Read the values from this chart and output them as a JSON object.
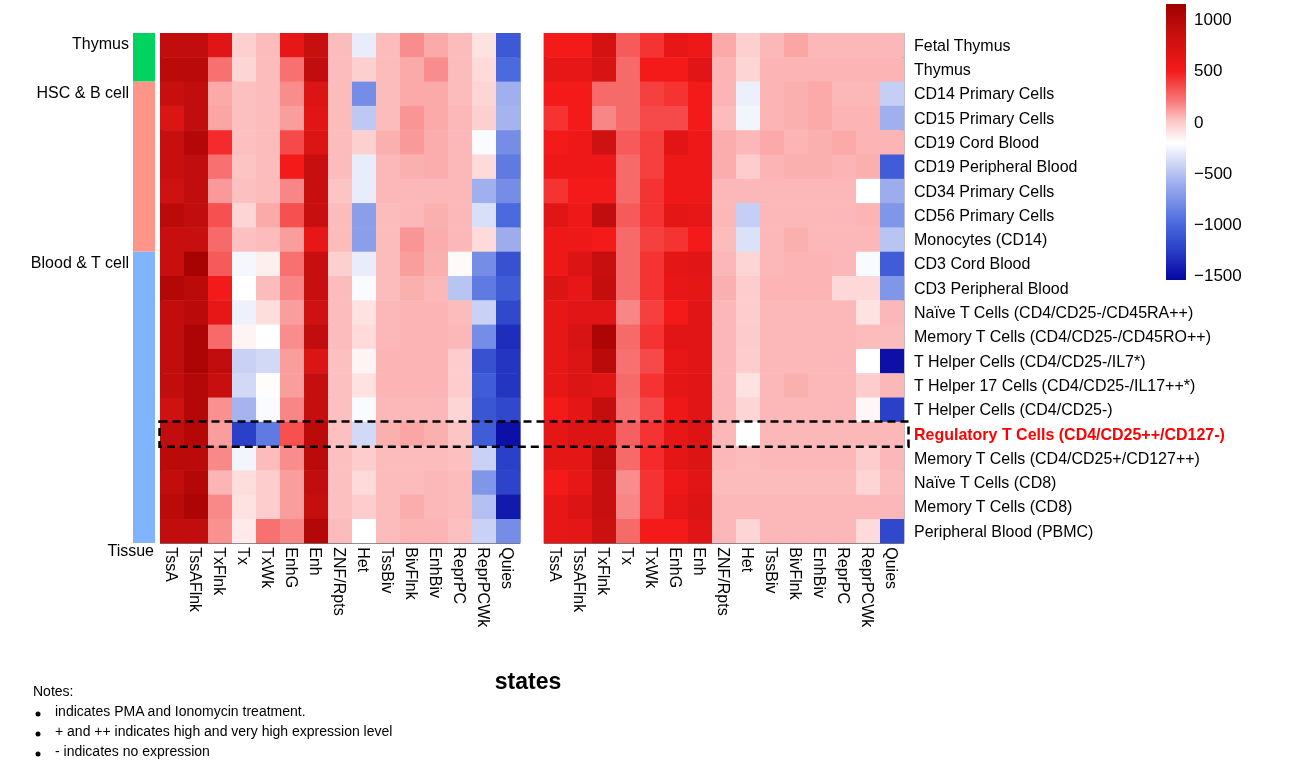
{
  "chart_data": {
    "type": "heatmap",
    "xlabel": "states",
    "categories": [
      "TssA",
      "TssAFlnk",
      "TxFlnk",
      "Tx",
      "TxWk",
      "EnhG",
      "Enh",
      "ZNF/Rpts",
      "Het",
      "TssBiv",
      "BivFlnk",
      "EnhBiv",
      "ReprPC",
      "ReprPCWk",
      "Quies",
      null,
      "TssA",
      "TssAFlnk",
      "TxFlnk",
      "Tx",
      "TxWk",
      "EnhG",
      "Enh",
      "ZNF/Rpts",
      "Het",
      "TssBiv",
      "BivFlnk",
      "EnhBiv",
      "ReprPC",
      "ReprPCWk",
      "Quies"
    ],
    "y_categories": [
      "Fetal Thymus",
      "Thymus",
      "CD14 Primary Cells",
      "CD15 Primary Cells",
      "CD19 Cord Blood",
      "CD19 Peripheral Blood",
      "CD34 Primary Cells",
      "CD56 Primary Cells",
      "Monocytes (CD14)",
      "CD3 Cord Blood",
      "CD3 Peripheral Blood",
      "Naïve T Cells (CD4/CD25-/CD45RA++)",
      "Memory T Cells (CD4/CD25-/CD45RO++)",
      "T Helper Cells (CD4/CD25-/IL7*)",
      "T Helper 17 Cells (CD4/CD25-/IL17++*)",
      "T Helper Cells (CD4/CD25-)",
      "Regulatory T Cells (CD4/CD25++/CD127-)",
      "Memory T Cells (CD4/CD25+/CD127++)",
      "Naïve T Cells (CD8)",
      "Memory T Cells (CD8)",
      "Peripheral Blood (PBMC)"
    ],
    "cells": [
      [
        900,
        900,
        650,
        -30,
        30,
        600,
        850,
        30,
        -300,
        30,
        150,
        80,
        30,
        -100,
        -1100,
        null,
        500,
        500,
        750,
        300,
        420,
        600,
        550,
        80,
        -30,
        40,
        90,
        40,
        40,
        40,
        40
      ],
      [
        950,
        950,
        230,
        -50,
        30,
        230,
        900,
        30,
        -30,
        30,
        80,
        150,
        30,
        -70,
        -1000,
        null,
        600,
        600,
        720,
        250,
        500,
        500,
        650,
        50,
        -50,
        50,
        50,
        50,
        50,
        50,
        50
      ],
      [
        850,
        900,
        80,
        20,
        30,
        150,
        700,
        30,
        -800,
        30,
        80,
        80,
        30,
        -50,
        -600,
        null,
        500,
        500,
        250,
        250,
        380,
        420,
        500,
        50,
        -290,
        50,
        60,
        80,
        40,
        40,
        -450
      ],
      [
        700,
        900,
        90,
        20,
        30,
        110,
        650,
        30,
        -480,
        30,
        130,
        80,
        40,
        -30,
        -580,
        null,
        420,
        500,
        170,
        250,
        350,
        350,
        500,
        30,
        -260,
        50,
        60,
        80,
        50,
        50,
        -600
      ],
      [
        850,
        1000,
        450,
        20,
        30,
        350,
        700,
        30,
        -30,
        60,
        120,
        70,
        40,
        -230,
        -800,
        null,
        500,
        550,
        800,
        300,
        380,
        650,
        550,
        70,
        40,
        80,
        50,
        60,
        80,
        50,
        50
      ],
      [
        850,
        900,
        230,
        10,
        30,
        500,
        850,
        30,
        -300,
        40,
        60,
        70,
        40,
        -70,
        -900,
        null,
        550,
        550,
        550,
        250,
        380,
        550,
        550,
        70,
        -20,
        50,
        60,
        60,
        50,
        60,
        -1080
      ],
      [
        800,
        900,
        120,
        20,
        30,
        170,
        850,
        10,
        -300,
        40,
        40,
        40,
        40,
        -600,
        -800,
        null,
        420,
        500,
        500,
        250,
        420,
        550,
        550,
        40,
        40,
        40,
        40,
        40,
        40,
        -210,
        -620
      ],
      [
        950,
        900,
        330,
        -50,
        80,
        330,
        850,
        30,
        -700,
        30,
        40,
        60,
        40,
        -370,
        -1000,
        null,
        650,
        550,
        900,
        300,
        420,
        620,
        600,
        40,
        -450,
        40,
        40,
        40,
        40,
        50,
        -750
      ],
      [
        850,
        850,
        250,
        20,
        30,
        110,
        600,
        30,
        -700,
        30,
        130,
        70,
        40,
        -70,
        -620,
        null,
        550,
        550,
        500,
        250,
        380,
        420,
        500,
        30,
        -360,
        40,
        60,
        40,
        40,
        40,
        -500
      ],
      [
        850,
        1100,
        300,
        -250,
        -150,
        230,
        850,
        -30,
        -300,
        30,
        110,
        60,
        -190,
        -800,
        -1150,
        null,
        550,
        680,
        850,
        250,
        420,
        620,
        650,
        40,
        -50,
        40,
        50,
        50,
        40,
        -230,
        -1080
      ],
      [
        1000,
        950,
        500,
        -210,
        30,
        170,
        850,
        30,
        -230,
        30,
        60,
        40,
        -500,
        -900,
        -1080,
        null,
        700,
        600,
        880,
        250,
        420,
        600,
        620,
        60,
        -20,
        50,
        50,
        50,
        -60,
        -60,
        -750
      ],
      [
        900,
        950,
        600,
        -280,
        -80,
        110,
        800,
        30,
        -100,
        40,
        50,
        50,
        30,
        -430,
        -1200,
        null,
        600,
        650,
        650,
        170,
        380,
        500,
        650,
        40,
        -20,
        40,
        40,
        40,
        40,
        -100,
        40
      ],
      [
        900,
        1050,
        250,
        -170,
        -210,
        150,
        900,
        30,
        -70,
        40,
        50,
        50,
        40,
        -800,
        -1350,
        null,
        600,
        720,
        1050,
        250,
        420,
        650,
        650,
        40,
        -10,
        40,
        40,
        40,
        40,
        30,
        30
      ],
      [
        900,
        1050,
        900,
        -430,
        -400,
        110,
        700,
        20,
        -170,
        50,
        50,
        50,
        -20,
        -1150,
        -1300,
        null,
        600,
        700,
        950,
        230,
        350,
        600,
        650,
        40,
        -20,
        40,
        40,
        40,
        40,
        -210,
        -1500
      ],
      [
        900,
        1000,
        850,
        -400,
        -200,
        110,
        870,
        20,
        -100,
        50,
        50,
        50,
        -20,
        -1080,
        -1300,
        null,
        600,
        700,
        650,
        250,
        420,
        620,
        650,
        40,
        -100,
        40,
        60,
        40,
        40,
        -20,
        40
      ],
      [
        800,
        1000,
        140,
        -580,
        -230,
        170,
        870,
        20,
        -230,
        40,
        40,
        40,
        -50,
        -1120,
        -1200,
        null,
        500,
        620,
        880,
        230,
        350,
        550,
        650,
        40,
        -50,
        40,
        40,
        40,
        40,
        -180,
        -1250
      ],
      [
        900,
        1000,
        110,
        -1250,
        -900,
        330,
        950,
        20,
        -400,
        60,
        90,
        60,
        10,
        -1080,
        -1500,
        null,
        620,
        680,
        680,
        280,
        420,
        600,
        680,
        40,
        -210,
        40,
        40,
        40,
        40,
        40,
        40
      ],
      [
        950,
        950,
        160,
        -260,
        30,
        150,
        950,
        20,
        -20,
        30,
        30,
        30,
        20,
        -430,
        -1250,
        null,
        620,
        620,
        920,
        250,
        450,
        620,
        680,
        40,
        30,
        40,
        40,
        40,
        40,
        -20,
        40
      ],
      [
        900,
        1000,
        50,
        -80,
        -20,
        110,
        900,
        20,
        -70,
        30,
        30,
        40,
        30,
        -750,
        -1230,
        null,
        500,
        600,
        850,
        150,
        420,
        550,
        650,
        30,
        30,
        30,
        30,
        30,
        30,
        -50,
        30
      ],
      [
        950,
        1050,
        160,
        -100,
        -20,
        110,
        870,
        20,
        -20,
        30,
        70,
        40,
        30,
        -520,
        -1450,
        null,
        600,
        680,
        850,
        170,
        420,
        600,
        680,
        40,
        40,
        40,
        40,
        40,
        40,
        40,
        40
      ],
      [
        900,
        900,
        140,
        -130,
        230,
        170,
        1000,
        30,
        -210,
        30,
        50,
        50,
        20,
        -430,
        -800,
        null,
        600,
        620,
        830,
        250,
        500,
        500,
        650,
        40,
        -50,
        40,
        40,
        40,
        40,
        -70,
        -1200
      ]
    ],
    "clim": [
      -1550,
      1150
    ],
    "cticks": [
      -1500,
      -1000,
      -500,
      0,
      500,
      1000
    ],
    "annotations": [
      "Thymus",
      "HSC & B cell",
      "Blood & T cell",
      "Tissue",
      "Notes:",
      "indicates PMA and Ionomycin treatment.",
      "+ and ++ indicates high and very high expression level",
      "- indicates no expression"
    ]
  }
}
